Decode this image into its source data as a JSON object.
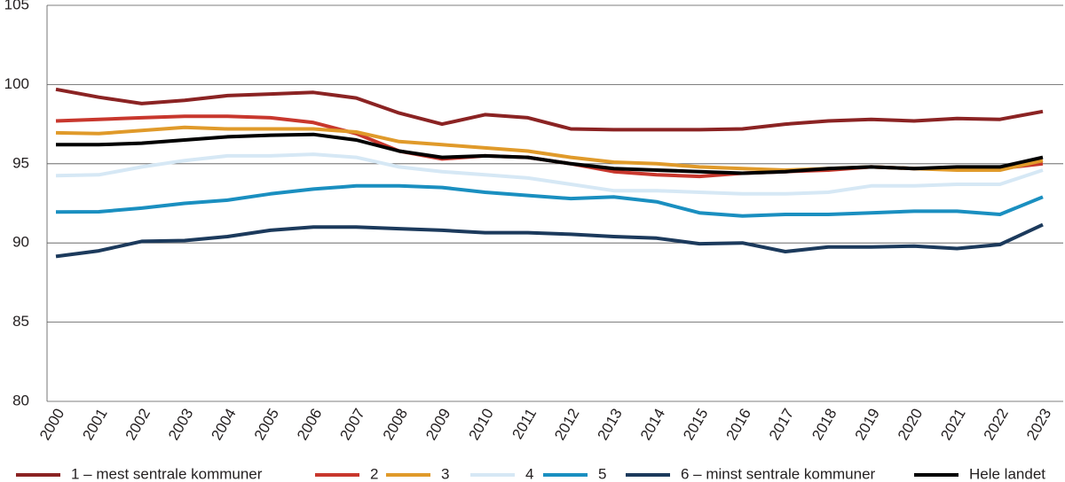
{
  "chart_data": {
    "type": "line",
    "categories": [
      "2000",
      "2001",
      "2002",
      "2003",
      "2004",
      "2005",
      "2006",
      "2007",
      "2008",
      "2009",
      "2010",
      "2011",
      "2012",
      "2013",
      "2014",
      "2015",
      "2016",
      "2017",
      "2018",
      "2019",
      "2020",
      "2021",
      "2022",
      "2023"
    ],
    "ylim": [
      80,
      105
    ],
    "yticks": [
      80,
      85,
      90,
      95,
      100,
      105
    ],
    "grid": true,
    "legend": "bottom",
    "series": [
      {
        "name": "1 – mest sentrale kommuner",
        "color": "#8b2323",
        "values": [
          99.7,
          99.2,
          98.8,
          99.0,
          99.3,
          99.4,
          99.5,
          99.15,
          98.2,
          97.5,
          98.1,
          97.9,
          97.2,
          97.15,
          97.15,
          97.15,
          97.2,
          97.5,
          97.7,
          97.8,
          97.7,
          97.85,
          97.8,
          98.3
        ]
      },
      {
        "name": "2",
        "color": "#c8372d",
        "values": [
          97.7,
          97.8,
          97.9,
          98.0,
          98.0,
          97.9,
          97.6,
          96.9,
          95.8,
          95.3,
          95.5,
          95.4,
          95.0,
          94.5,
          94.3,
          94.2,
          94.4,
          94.5,
          94.6,
          94.8,
          94.7,
          94.7,
          94.7,
          95.0
        ]
      },
      {
        "name": "3",
        "color": "#e09a2a",
        "values": [
          96.95,
          96.9,
          97.1,
          97.3,
          97.2,
          97.2,
          97.2,
          97.0,
          96.4,
          96.2,
          96.0,
          95.8,
          95.4,
          95.1,
          95.0,
          94.8,
          94.7,
          94.6,
          94.7,
          94.8,
          94.7,
          94.6,
          94.6,
          95.2
        ]
      },
      {
        "name": "4",
        "color": "#d6e8f5",
        "values": [
          94.25,
          94.3,
          94.8,
          95.2,
          95.5,
          95.5,
          95.6,
          95.4,
          94.8,
          94.5,
          94.3,
          94.1,
          93.7,
          93.3,
          93.3,
          93.2,
          93.1,
          93.1,
          93.2,
          93.6,
          93.6,
          93.7,
          93.7,
          94.6
        ]
      },
      {
        "name": "5",
        "color": "#1a8fc0",
        "values": [
          91.95,
          91.97,
          92.2,
          92.5,
          92.7,
          93.1,
          93.4,
          93.6,
          93.6,
          93.5,
          93.2,
          93.0,
          92.8,
          92.9,
          92.6,
          91.9,
          91.7,
          91.8,
          91.8,
          91.9,
          92.0,
          92.0,
          91.8,
          92.9
        ]
      },
      {
        "name": "6 – minst sentrale kommuner",
        "color": "#1c3a5c",
        "values": [
          89.15,
          89.5,
          90.1,
          90.15,
          90.4,
          90.8,
          91.0,
          91.0,
          90.9,
          90.8,
          90.65,
          90.65,
          90.55,
          90.4,
          90.3,
          89.95,
          90.0,
          89.45,
          89.75,
          89.75,
          89.8,
          89.65,
          89.9,
          91.15
        ]
      },
      {
        "name": "Hele landet",
        "color": "#000000",
        "values": [
          96.2,
          96.2,
          96.3,
          96.5,
          96.7,
          96.8,
          96.85,
          96.5,
          95.8,
          95.4,
          95.5,
          95.4,
          95.0,
          94.7,
          94.6,
          94.5,
          94.4,
          94.5,
          94.7,
          94.8,
          94.7,
          94.8,
          94.8,
          95.4
        ]
      }
    ]
  }
}
